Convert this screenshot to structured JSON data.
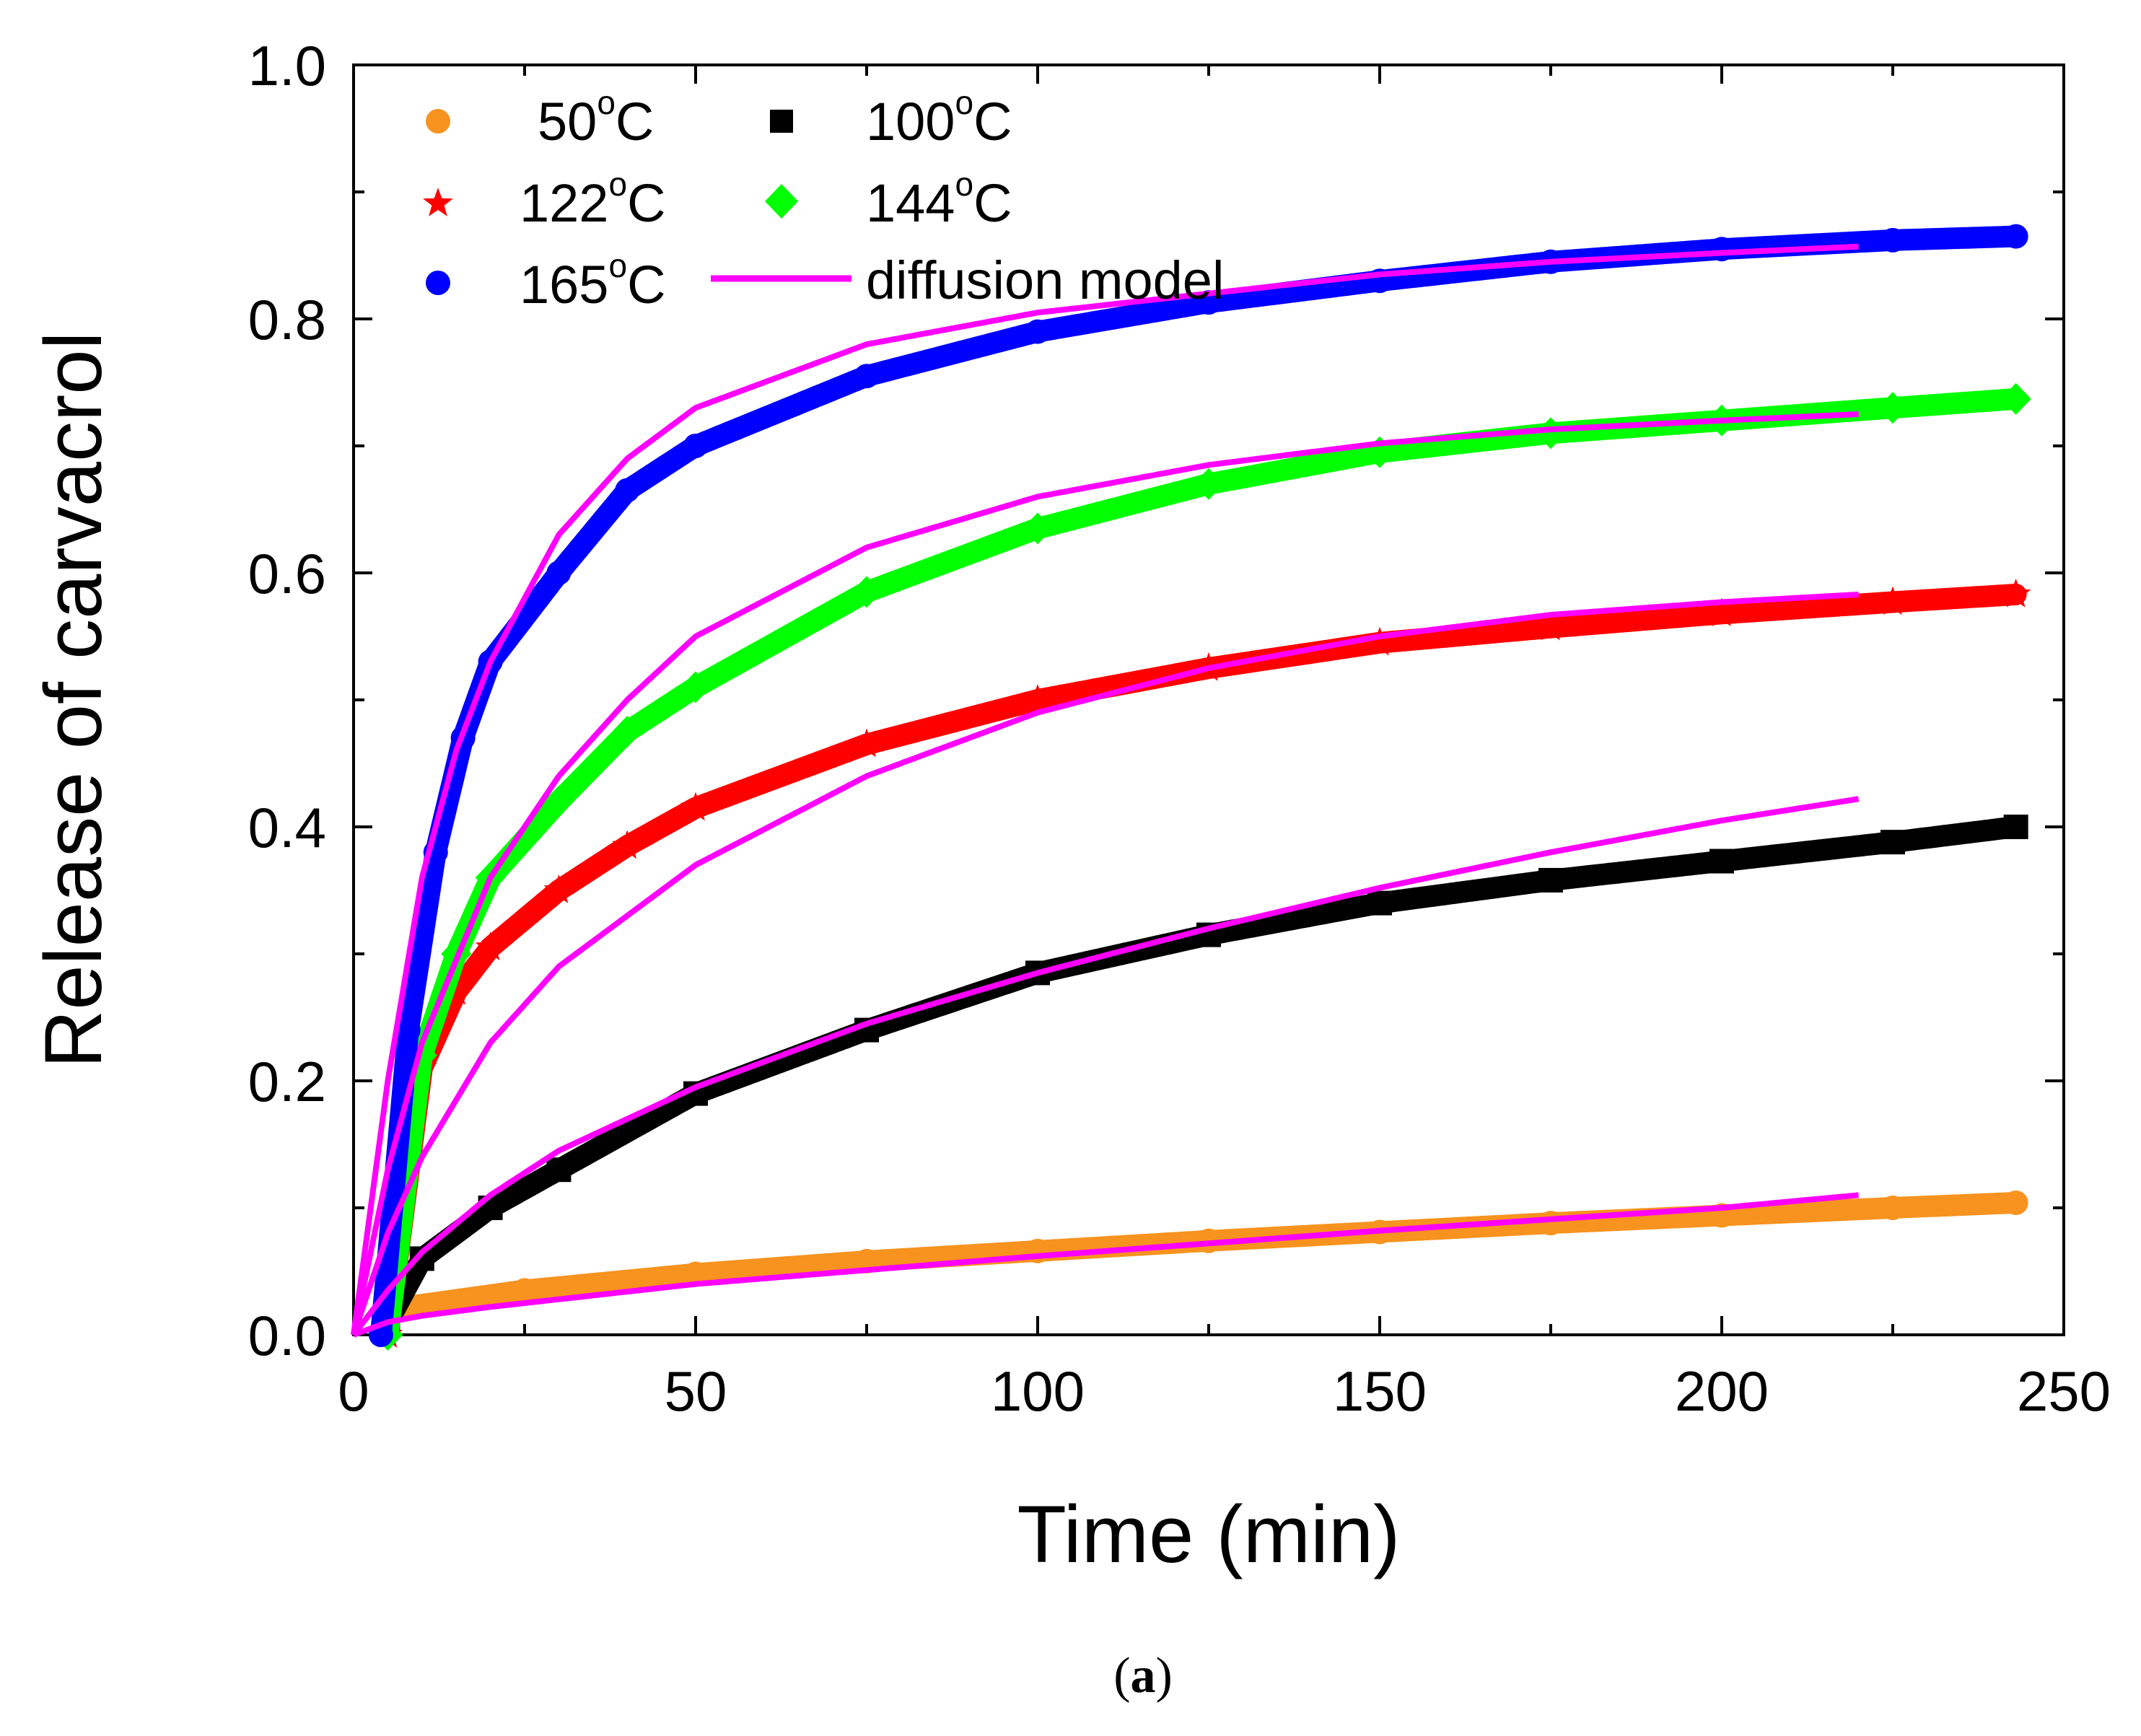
{
  "chart_data": {
    "type": "scatter",
    "title": "",
    "xlabel": "Time (min)",
    "ylabel": "Release of carvacrol",
    "xlim": [
      0,
      250
    ],
    "ylim": [
      0.0,
      1.0
    ],
    "x_ticks": [
      "0",
      "50",
      "100",
      "150",
      "200",
      "250"
    ],
    "y_ticks": [
      "0.0",
      "0.2",
      "0.4",
      "0.6",
      "0.8",
      "1.0"
    ],
    "legend_position": "top-left",
    "series": [
      {
        "name": "50",
        "unit": "°C",
        "marker": "circle",
        "color": "#f7931e",
        "x": [
          5,
          25,
          50,
          75,
          100,
          125,
          150,
          175,
          200,
          225,
          243
        ],
        "y": [
          0.02,
          0.035,
          0.048,
          0.058,
          0.066,
          0.074,
          0.081,
          0.088,
          0.094,
          0.1,
          0.104
        ]
      },
      {
        "name": "100",
        "unit": "°C",
        "marker": "square",
        "color": "#000000",
        "x": [
          5,
          10,
          20,
          30,
          50,
          75,
          100,
          125,
          150,
          175,
          200,
          225,
          243
        ],
        "y": [
          0.01,
          0.06,
          0.1,
          0.13,
          0.19,
          0.24,
          0.285,
          0.315,
          0.34,
          0.358,
          0.373,
          0.388,
          0.4
        ]
      },
      {
        "name": "122",
        "unit": "°C",
        "marker": "star",
        "color": "#ff0000",
        "x": [
          5,
          10,
          15,
          20,
          30,
          40,
          50,
          75,
          100,
          125,
          150,
          175,
          200,
          225,
          243
        ],
        "y": [
          0.0,
          0.21,
          0.27,
          0.305,
          0.35,
          0.385,
          0.415,
          0.465,
          0.5,
          0.525,
          0.545,
          0.557,
          0.568,
          0.577,
          0.583
        ]
      },
      {
        "name": "144",
        "unit": "°C",
        "marker": "diamond",
        "color": "#00ff00",
        "x": [
          5,
          10,
          15,
          20,
          30,
          40,
          50,
          75,
          100,
          125,
          150,
          175,
          200,
          225,
          243
        ],
        "y": [
          0.0,
          0.22,
          0.3,
          0.36,
          0.42,
          0.475,
          0.51,
          0.585,
          0.635,
          0.67,
          0.695,
          0.71,
          0.72,
          0.73,
          0.737
        ]
      },
      {
        "name": "165",
        "unit": "°C",
        "marker": "circle",
        "color": "#0000ff",
        "x": [
          4,
          8,
          12,
          16,
          20,
          30,
          40,
          50,
          75,
          100,
          125,
          150,
          175,
          200,
          225,
          243
        ],
        "y": [
          0.0,
          0.24,
          0.38,
          0.47,
          0.53,
          0.6,
          0.665,
          0.7,
          0.755,
          0.79,
          0.813,
          0.83,
          0.845,
          0.855,
          0.862,
          0.865
        ]
      },
      {
        "name": "diffusion model",
        "unit": "",
        "marker": "line",
        "color": "#ff00ff",
        "curves": [
          {
            "x": [
              0,
              5,
              10,
              20,
              50,
              100,
              150,
              200,
              220
            ],
            "y": [
              0.0,
              0.01,
              0.015,
              0.022,
              0.04,
              0.062,
              0.082,
              0.1,
              0.11
            ]
          },
          {
            "x": [
              0,
              5,
              10,
              20,
              30,
              50,
              75,
              100,
              125,
              150,
              175,
              200,
              220
            ],
            "y": [
              0.0,
              0.035,
              0.065,
              0.11,
              0.145,
              0.195,
              0.245,
              0.285,
              0.32,
              0.352,
              0.38,
              0.405,
              0.422
            ]
          },
          {
            "x": [
              0,
              5,
              10,
              20,
              30,
              50,
              75,
              100,
              125,
              150,
              175,
              200,
              220
            ],
            "y": [
              0.0,
              0.08,
              0.14,
              0.23,
              0.29,
              0.37,
              0.44,
              0.49,
              0.525,
              0.55,
              0.567,
              0.577,
              0.583
            ]
          },
          {
            "x": [
              0,
              5,
              10,
              20,
              30,
              40,
              50,
              75,
              100,
              125,
              150,
              175,
              200,
              220
            ],
            "y": [
              0.0,
              0.13,
              0.23,
              0.36,
              0.44,
              0.5,
              0.55,
              0.62,
              0.66,
              0.685,
              0.702,
              0.713,
              0.72,
              0.725
            ]
          },
          {
            "x": [
              0,
              5,
              10,
              15,
              20,
              30,
              40,
              50,
              75,
              100,
              125,
              150,
              175,
              200,
              220
            ],
            "y": [
              0.0,
              0.2,
              0.36,
              0.46,
              0.53,
              0.63,
              0.69,
              0.73,
              0.78,
              0.805,
              0.82,
              0.835,
              0.845,
              0.852,
              0.857
            ]
          }
        ]
      }
    ],
    "legend": [
      {
        "label": "50",
        "sup": "o",
        "unit": "C"
      },
      {
        "label": "100",
        "sup": "o",
        "unit": "C"
      },
      {
        "label": "122",
        "sup": "o",
        "unit": "C"
      },
      {
        "label": "144",
        "sup": "o",
        "unit": "C"
      },
      {
        "label": "165",
        "sup": "o",
        "unit": "C"
      },
      {
        "label": "diffusion model",
        "sup": "",
        "unit": ""
      }
    ]
  },
  "caption": {
    "open": "(",
    "letter": "a",
    "close": ")"
  }
}
